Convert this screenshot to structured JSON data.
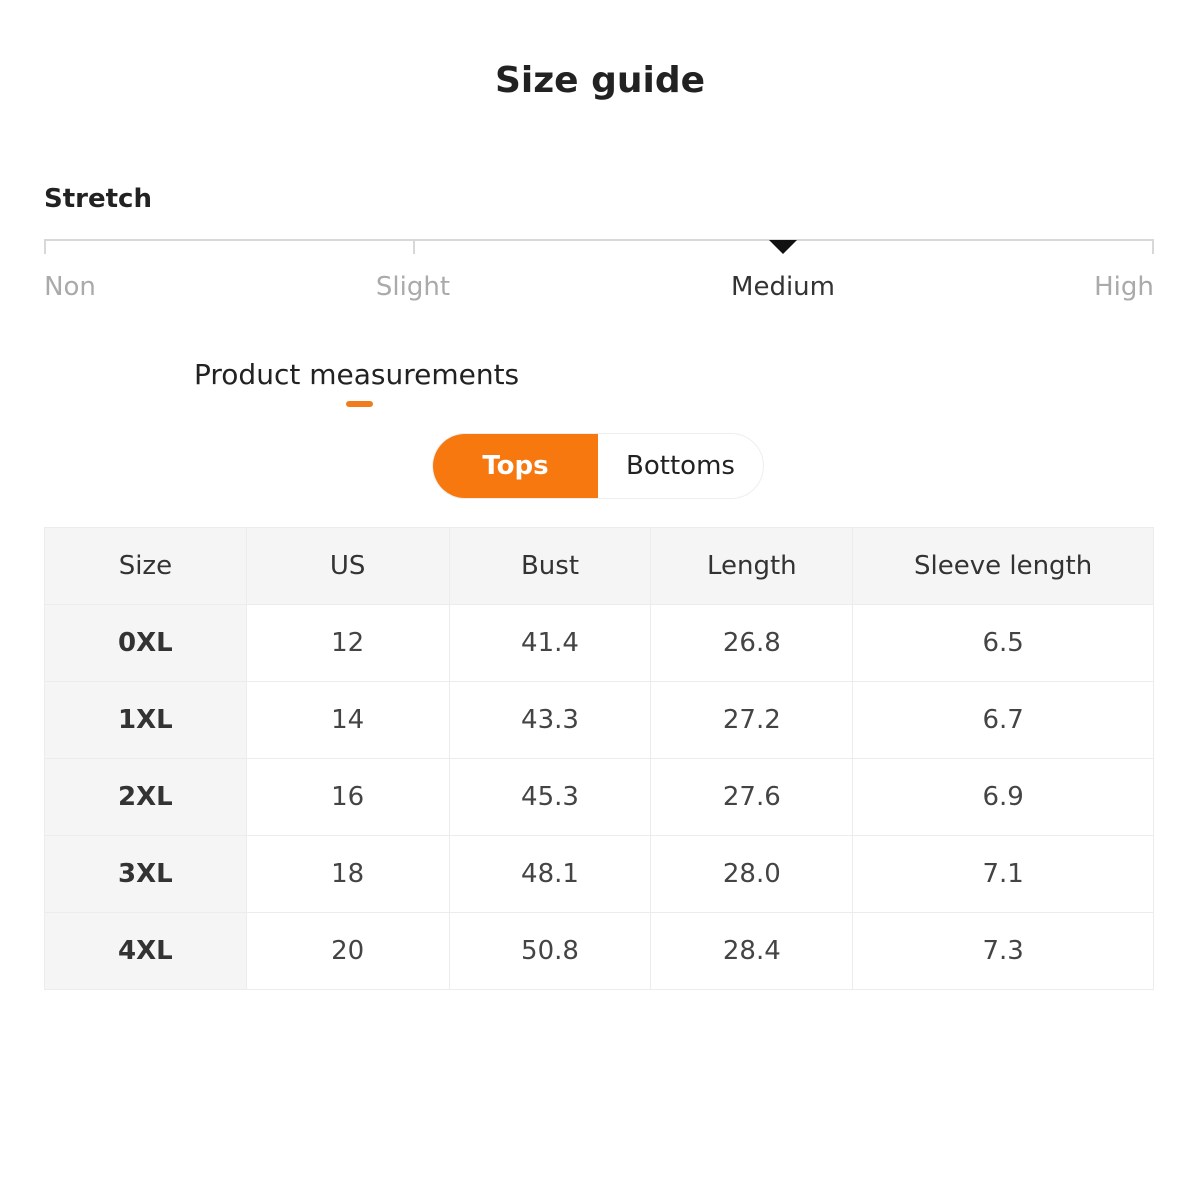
{
  "title": "Size guide",
  "stretch": {
    "label": "Stretch",
    "levels": [
      "Non",
      "Slight",
      "Medium",
      "High"
    ],
    "selected": "Medium"
  },
  "section": {
    "title": "Product measurements"
  },
  "tabs": [
    {
      "label": "Tops",
      "active": true
    },
    {
      "label": "Bottoms",
      "active": false
    }
  ],
  "accent_color": "#f7780f",
  "table": {
    "headers": [
      "Size",
      "US",
      "Bust",
      "Length",
      "Sleeve length"
    ],
    "rows": [
      [
        "0XL",
        "12",
        "41.4",
        "26.8",
        "6.5"
      ],
      [
        "1XL",
        "14",
        "43.3",
        "27.2",
        "6.7"
      ],
      [
        "2XL",
        "16",
        "45.3",
        "27.6",
        "6.9"
      ],
      [
        "3XL",
        "18",
        "48.1",
        "28.0",
        "7.1"
      ],
      [
        "4XL",
        "20",
        "50.8",
        "28.4",
        "7.3"
      ]
    ]
  }
}
